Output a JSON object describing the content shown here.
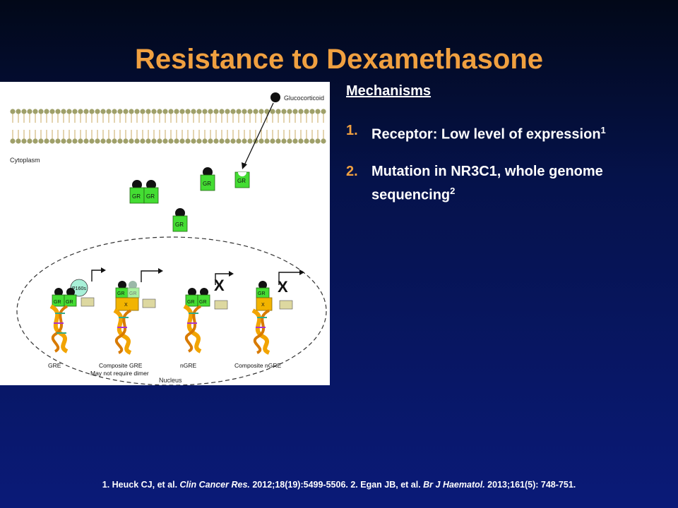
{
  "title": "Resistance to Dexamethasone",
  "figure": {
    "glucocorticoid": "Glucocorticoid",
    "cytoplasm": "Cytoplasm",
    "nucleus": "Nucleus",
    "gr": "GR",
    "x": "X",
    "p160s": "P160s",
    "labels": {
      "gre": "GRE",
      "composite_gre": "Composite GRE",
      "composite_gre_note": "May not require dimer",
      "ngre": "nGRE",
      "composite_ngre": "Composite nGRE"
    }
  },
  "mechanisms": {
    "heading": "Mechanisms",
    "items": [
      {
        "num": "1.",
        "text": "Receptor: Low level of expression",
        "sup": "1"
      },
      {
        "num": "2.",
        "text": "Mutation in NR3C1, whole genome sequencing",
        "sup": "2"
      }
    ]
  },
  "references": {
    "r1_authors": "1. Heuck CJ, et al. ",
    "r1_journal": "Clin Cancer Res.",
    "r1_rest": " 2012;18(19):5499-5506. 2. Egan JB, et al. ",
    "r2_journal": "Br J Haematol.",
    "r2_rest": " 2013;161(5): 748-751."
  },
  "colors": {
    "title": "#f0a040",
    "gr_box": "#44dd33",
    "x_box": "#f2b400",
    "membrane": "#9fa06a"
  }
}
